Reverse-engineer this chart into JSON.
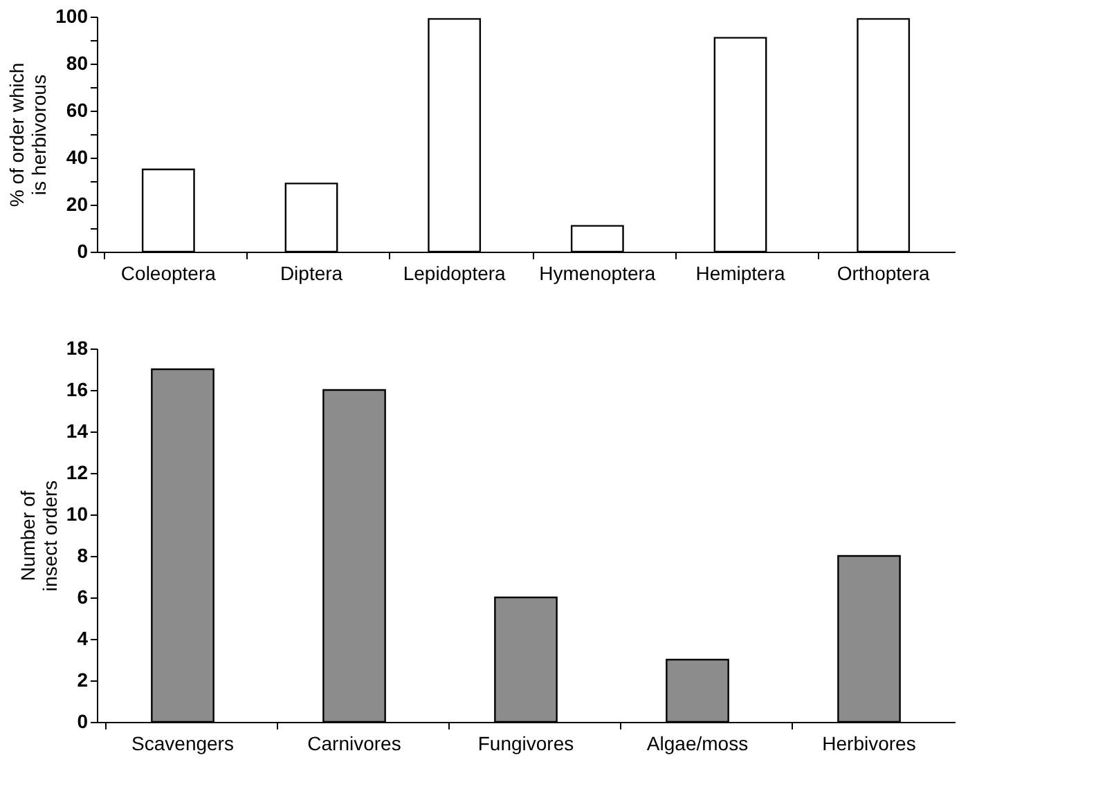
{
  "chart_data": [
    {
      "type": "bar",
      "ylabel": "% of order which\nis herbivorous",
      "categories": [
        "Coleoptera",
        "Diptera",
        "Lepidoptera",
        "Hymenoptera",
        "Hemiptera",
        "Orthoptera"
      ],
      "values": [
        35,
        29,
        99,
        11,
        91,
        99
      ],
      "color": "#ffffff",
      "ylim": [
        0,
        100
      ],
      "yticks": [
        0,
        {
          "value": 10,
          "label": null
        },
        20,
        {
          "value": 30,
          "label": null
        },
        40,
        {
          "value": 50,
          "label": null
        },
        60,
        {
          "value": 70,
          "label": null
        },
        80,
        {
          "value": 90,
          "label": null
        },
        100
      ],
      "grid": false
    },
    {
      "type": "bar",
      "ylabel": "Number of\ninsect orders",
      "categories": [
        "Scavengers",
        "Carnivores",
        "Fungivores",
        "Algae/moss",
        "Herbivores"
      ],
      "values": [
        17,
        16,
        6,
        3,
        8
      ],
      "color": "#8c8c8c",
      "ylim": [
        0,
        18
      ],
      "yticks": [
        0,
        2,
        4,
        6,
        8,
        10,
        12,
        14,
        16,
        18
      ],
      "grid": false
    }
  ]
}
